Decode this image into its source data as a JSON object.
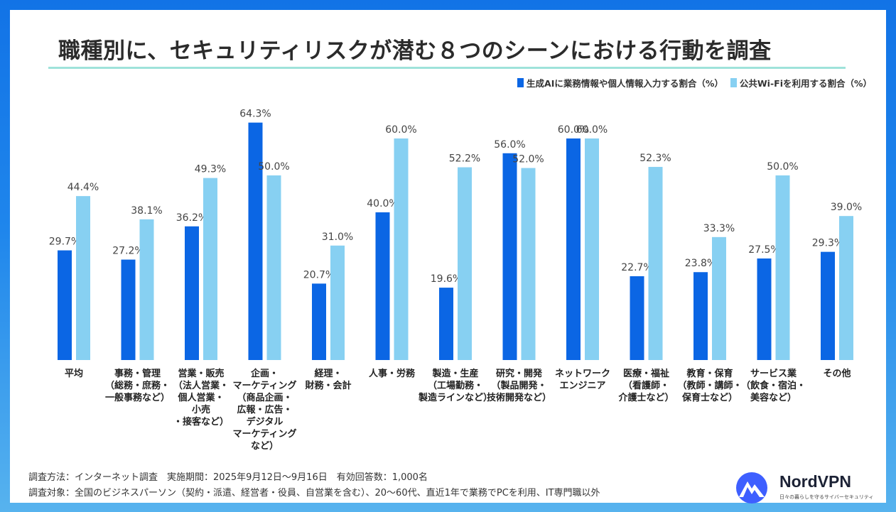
{
  "title": "職種別に、セキュリティリスクが潜む８つのシーンにおける行動を調査",
  "colors": {
    "series1": "#0b66e4",
    "series2": "#87d0f2"
  },
  "chart_data": {
    "type": "bar",
    "title": "職種別に、セキュリティリスクが潜む８つのシーンにおける行動を調査",
    "legend_position": "top-right",
    "grid": false,
    "ylim": [
      0,
      70
    ],
    "categories": [
      [
        "平均"
      ],
      [
        "事務・管理",
        "（総務・庶務・",
        "一般事務など）"
      ],
      [
        "営業・販売",
        "（法人営業・",
        "個人営業・",
        "小売",
        "・接客など）"
      ],
      [
        "企画・",
        "マーケティング",
        "（商品企画・",
        "広報・広告・",
        "デジタル",
        "マーケティング",
        "など）"
      ],
      [
        "経理・",
        "財務・会計"
      ],
      [
        "人事・労務"
      ],
      [
        "製造・生産",
        "（工場勤務・",
        "製造ラインなど）"
      ],
      [
        "研究・開発",
        "（製品開発・",
        "技術開発など）"
      ],
      [
        "ネットワーク",
        "エンジニア"
      ],
      [
        "医療・福祉",
        "（看護師・",
        "介護士など）"
      ],
      [
        "教育・保育",
        "（教師・講師・",
        "保育士など）"
      ],
      [
        "サービス業",
        "（飲食・宿泊・",
        "美容など）"
      ],
      [
        "その他"
      ]
    ],
    "series": [
      {
        "name": "生成AIに業務情報や個人情報入力する割合（%）",
        "values": [
          29.7,
          27.2,
          36.2,
          64.3,
          20.7,
          40.0,
          19.6,
          56.0,
          60.0,
          22.7,
          23.8,
          27.5,
          29.3
        ],
        "labels": [
          "29.7%",
          "27.2%",
          "36.2%",
          "64.3%",
          "20.7%",
          "40.0%",
          "19.6%",
          "56.0%",
          "60.0%",
          "22.7%",
          "23.8%",
          "27.5%",
          "29.3%"
        ]
      },
      {
        "name": "公共Wi-Fiを利用する割合（%）",
        "values": [
          44.4,
          38.1,
          49.3,
          50.0,
          31.0,
          60.0,
          52.2,
          52.0,
          60.0,
          52.3,
          33.3,
          50.0,
          39.0
        ],
        "labels": [
          "44.4%",
          "38.1%",
          "49.3%",
          "50.0%",
          "31.0%",
          "60.0%",
          "52.2%",
          "52.0%",
          "60.0%",
          "52.3%",
          "33.3%",
          "50.0%",
          "39.0%"
        ]
      }
    ]
  },
  "footnotes": {
    "method": "調査方法：インターネット調査　実施期間：2025年9月12日～9月16日　有効回答数：1,000名",
    "target": "調査対象：全国のビジネスパーソン（契約・派遣、経営者・役員、自営業を含む）、20～60代、直近1年で業務でPCを利用、IT専門職以外"
  },
  "logo": {
    "name": "NordVPN",
    "tagline": "日々の暮らしを守るサイバーセキュリティ"
  }
}
